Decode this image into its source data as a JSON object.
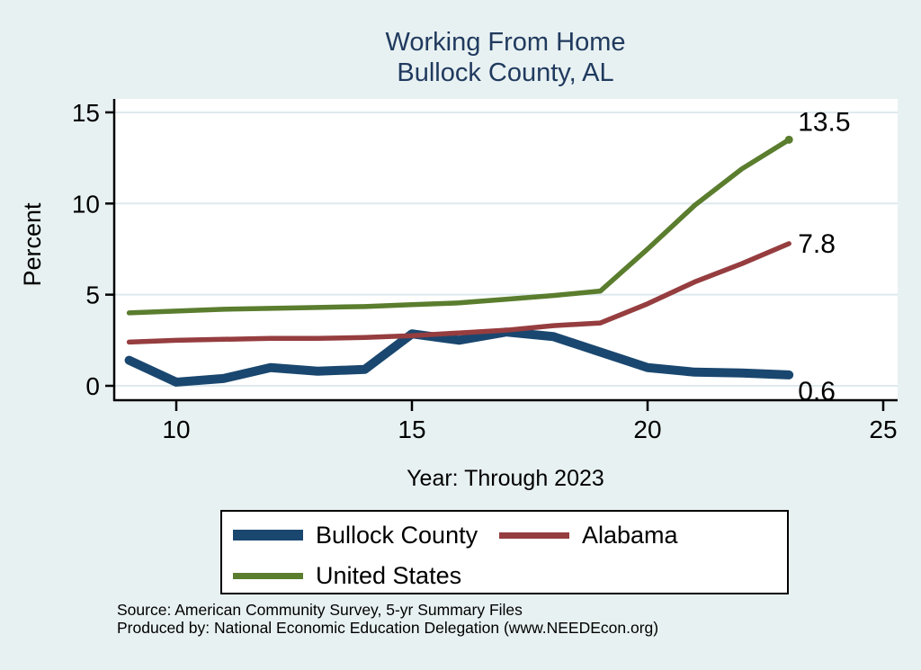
{
  "title": {
    "line1": "Working From Home",
    "line2": "Bullock County, AL"
  },
  "y_axis": {
    "label": "Percent",
    "ticks": [
      0,
      5,
      10,
      15
    ]
  },
  "x_axis": {
    "label": "Year: Through 2023",
    "ticks": [
      10,
      15,
      20,
      25
    ]
  },
  "legend": {
    "items": [
      {
        "label": "Bullock County",
        "color": "#1a476f",
        "swatch_thickness": 12
      },
      {
        "label": "Alabama",
        "color": "#963d3f",
        "swatch_thickness": 7
      },
      {
        "label": "United States",
        "color": "#5a7d2e",
        "swatch_thickness": 7
      }
    ]
  },
  "footer": {
    "line1": "Source: American Community Survey, 5-yr Summary Files",
    "line2": "Produced by: National Economic Education Delegation (www.NEEDEcon.org)"
  },
  "colors": {
    "background": "#e8f1f2",
    "plot_background": "#ffffff",
    "gridline": "#dde9ee",
    "axis": "#000000",
    "title_text": "#203a5e",
    "bullock_county": "#1a476f",
    "alabama": "#963d3f",
    "united_states": "#5a7d2e"
  },
  "chart_data": {
    "type": "line",
    "title": "Working From Home — Bullock County, AL",
    "xlabel": "Year: Through 2023",
    "ylabel": "Percent",
    "x": [
      9,
      10,
      11,
      12,
      13,
      14,
      15,
      16,
      17,
      18,
      19,
      20,
      21,
      22,
      23
    ],
    "series": [
      {
        "name": "Bullock County",
        "color": "#1a476f",
        "line_width": 10,
        "values": [
          1.4,
          0.2,
          0.4,
          1.0,
          0.8,
          0.9,
          2.85,
          2.5,
          2.95,
          2.7,
          1.85,
          1.0,
          0.75,
          0.7,
          0.6
        ],
        "end_label": "0.6",
        "end_marker": false
      },
      {
        "name": "Alabama",
        "color": "#963d3f",
        "line_width": 5.5,
        "values": [
          2.4,
          2.5,
          2.55,
          2.6,
          2.6,
          2.65,
          2.75,
          2.9,
          3.05,
          3.3,
          3.45,
          4.5,
          5.7,
          6.7,
          7.8
        ],
        "end_label": "7.8",
        "end_marker": false
      },
      {
        "name": "United States",
        "color": "#5a7d2e",
        "line_width": 5.5,
        "values": [
          4.0,
          4.1,
          4.2,
          4.25,
          4.3,
          4.35,
          4.45,
          4.55,
          4.75,
          4.95,
          5.2,
          7.5,
          9.9,
          11.9,
          13.5
        ],
        "end_label": "13.5",
        "end_marker": true
      }
    ],
    "xlim": [
      8.7,
      25.3
    ],
    "ylim": [
      -0.8,
      15.7
    ],
    "grid": "horizontal",
    "legend_position": "bottom"
  }
}
